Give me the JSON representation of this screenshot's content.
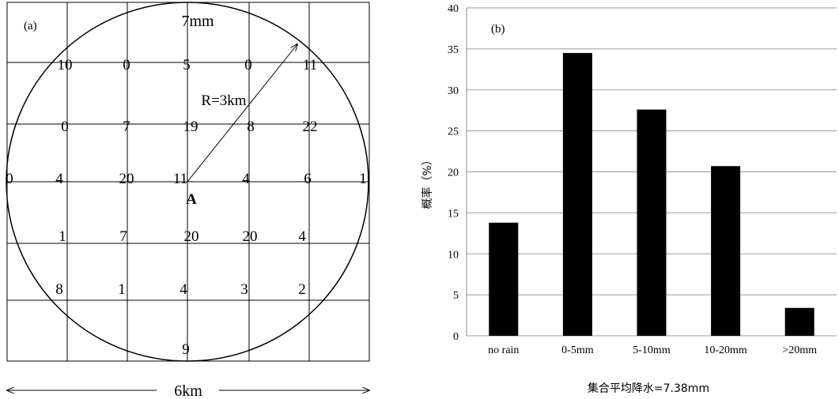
{
  "panel_a": {
    "label": "(a)",
    "top_label": "7mm",
    "radius_label": "R=3km",
    "center_label": "A",
    "bottom_label": "9",
    "left_edge_value": "0",
    "right_edge_value": "1",
    "scale_label": "6km",
    "grid_values": [
      [
        "10",
        "0",
        "5",
        "0",
        "11"
      ],
      [
        "0",
        "7",
        "19",
        "8",
        "22"
      ],
      [
        "4",
        "20",
        "11",
        "4",
        "6"
      ],
      [
        "1",
        "7",
        "20",
        "20",
        "4"
      ],
      [
        "8",
        "1",
        "4",
        "3",
        "2"
      ]
    ]
  },
  "chart_data": {
    "type": "bar",
    "panel_label": "(b)",
    "categories": [
      "no rain",
      "0-5mm",
      "5-10mm",
      "10-20mm",
      ">20mm"
    ],
    "values": [
      13.8,
      34.5,
      27.6,
      20.7,
      3.4
    ],
    "ylabel": "概率（%）",
    "xlabel": "集合平均降水=7.38mm",
    "ylim": [
      0,
      40
    ],
    "yticks": [
      0,
      5,
      10,
      15,
      20,
      25,
      30,
      35,
      40
    ],
    "grid": true,
    "bar_color": "#000000"
  }
}
